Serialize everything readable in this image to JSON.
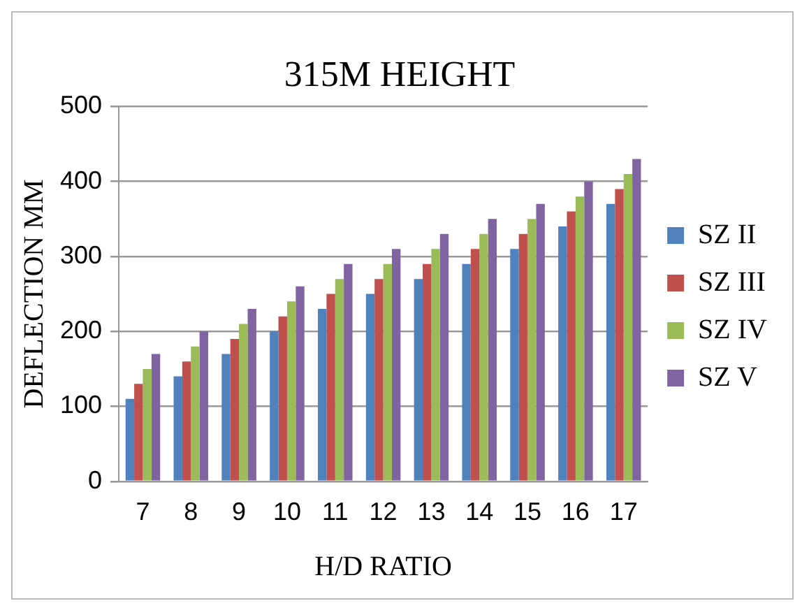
{
  "chart_data": {
    "type": "bar",
    "title": "315M HEIGHT",
    "xlabel": "H/D RATIO",
    "ylabel": "DEFLECTION MM",
    "categories": [
      "7",
      "8",
      "9",
      "10",
      "11",
      "12",
      "13",
      "14",
      "15",
      "16",
      "17"
    ],
    "series": [
      {
        "name": "SZ II",
        "color": "#4f81bd",
        "values": [
          110,
          140,
          170,
          200,
          230,
          250,
          270,
          290,
          310,
          340,
          370
        ]
      },
      {
        "name": "SZ III",
        "color": "#c0504d",
        "values": [
          130,
          160,
          190,
          220,
          250,
          270,
          290,
          310,
          330,
          360,
          390
        ]
      },
      {
        "name": "SZ IV",
        "color": "#9bbb59",
        "values": [
          150,
          180,
          210,
          240,
          270,
          290,
          310,
          330,
          350,
          380,
          410
        ]
      },
      {
        "name": "SZ V",
        "color": "#8064a2",
        "values": [
          170,
          200,
          230,
          260,
          290,
          310,
          330,
          350,
          370,
          400,
          430
        ]
      }
    ],
    "ylim": [
      0,
      500
    ],
    "yticks": [
      0,
      100,
      200,
      300,
      400,
      500
    ],
    "grid": "y",
    "legend": "right"
  }
}
